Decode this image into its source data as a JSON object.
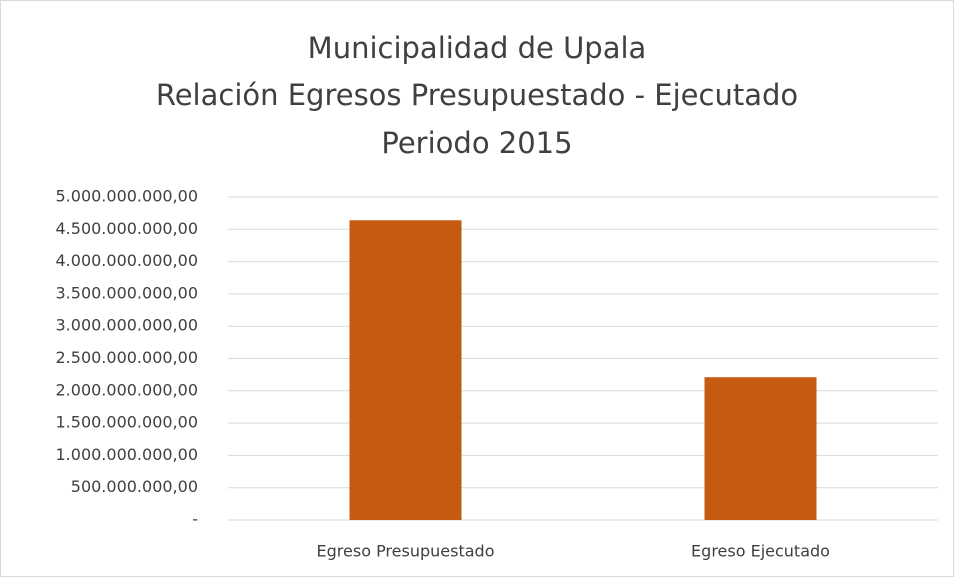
{
  "chart_data": {
    "type": "bar",
    "title": [
      "Municipalidad de Upala",
      "Relación Egresos Presupuestado - Ejecutado",
      "Periodo 2015"
    ],
    "categories": [
      "Egreso Presupuestado",
      "Egreso Ejecutado"
    ],
    "values": [
      4640000000,
      2210000000
    ],
    "color": "#c55a11",
    "ylim": [
      0,
      5000000000
    ],
    "yticks": [
      {
        "value": 0,
        "label": "-"
      },
      {
        "value": 500000000,
        "label": "500.000.000,00"
      },
      {
        "value": 1000000000,
        "label": "1.000.000.000,00"
      },
      {
        "value": 1500000000,
        "label": "1.500.000.000,00"
      },
      {
        "value": 2000000000,
        "label": "2.000.000.000,00"
      },
      {
        "value": 2500000000,
        "label": "2.500.000.000,00"
      },
      {
        "value": 3000000000,
        "label": "3.000.000.000,00"
      },
      {
        "value": 3500000000,
        "label": "3.500.000.000,00"
      },
      {
        "value": 4000000000,
        "label": "4.000.000.000,00"
      },
      {
        "value": 4500000000,
        "label": "4.500.000.000,00"
      },
      {
        "value": 5000000000,
        "label": "5.000.000.000,00"
      }
    ],
    "grid": true
  }
}
